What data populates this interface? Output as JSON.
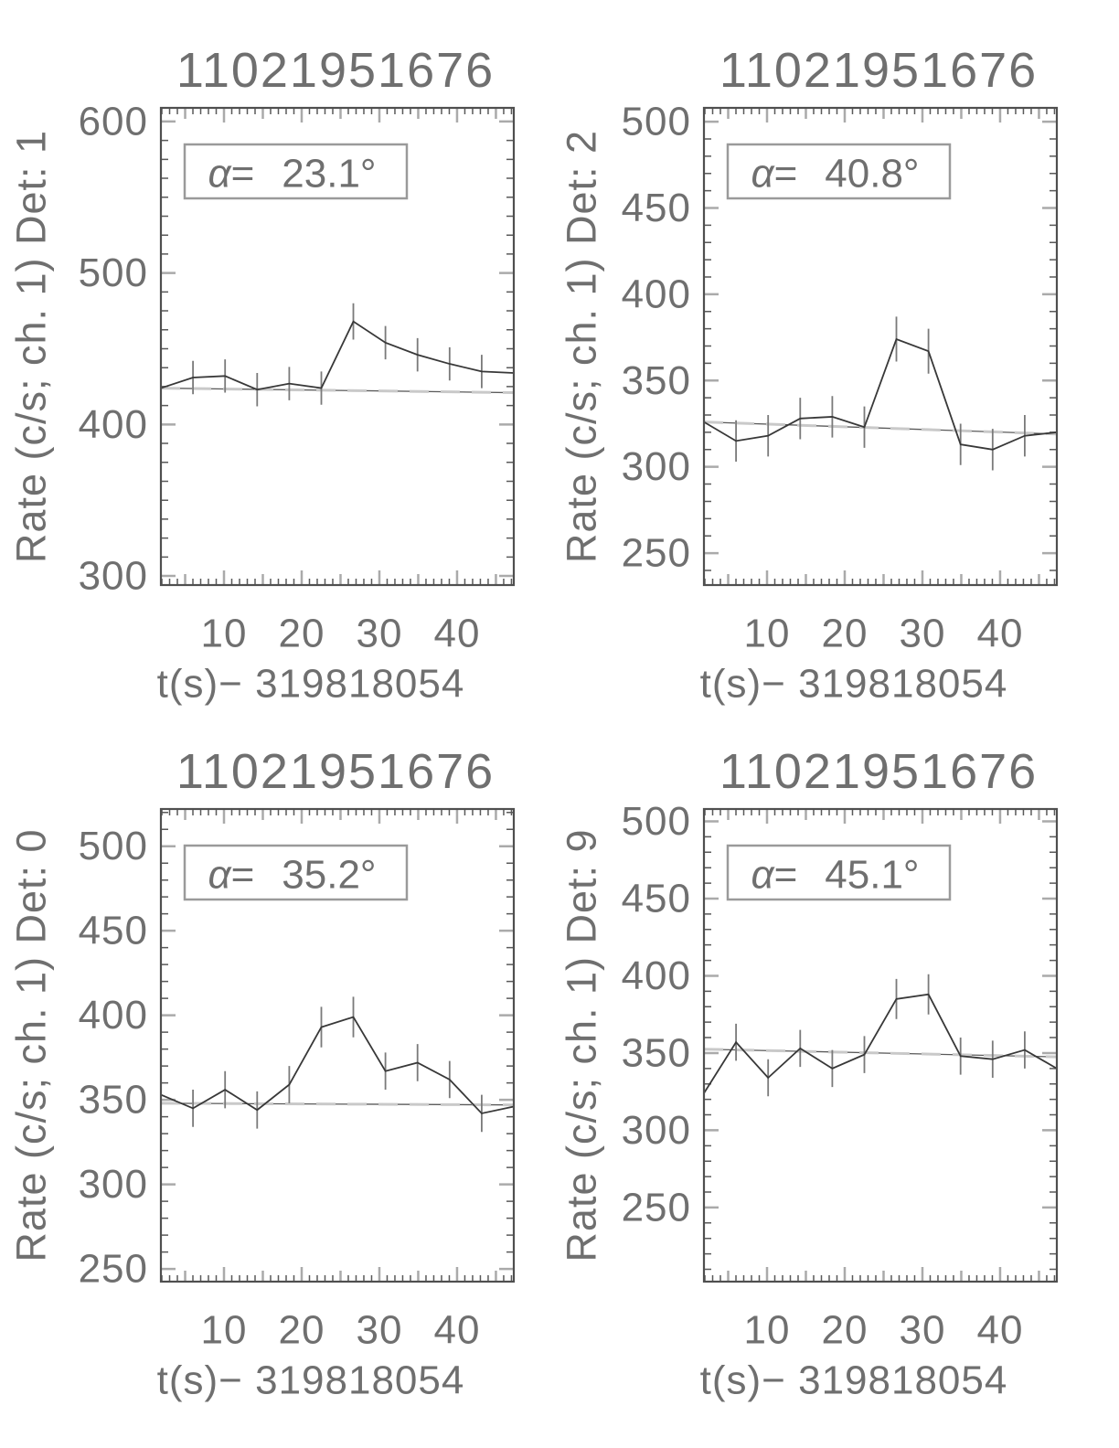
{
  "page": {
    "title": "11021951676",
    "background_color": "#ffffff"
  },
  "style": {
    "frame_color": "#4f4f4f",
    "minor_tick_color": "#5a5a5a",
    "major_tick_color": "#aaaaaa",
    "text_color": "#6f6f6f",
    "data_line_color": "#383838",
    "error_bar_color": "#7a7a7a",
    "background_fit_solid_color": "#5a5a5a",
    "background_fit_dash_color": "#c9c9c9",
    "annotation_box_border_color": "#9a9a9a"
  },
  "chart_data": [
    {
      "type": "line",
      "title": "11021951676",
      "ylabel": "Rate (c/s; ch. 1) Det: 1",
      "xlabel": "t(s)− 319818054",
      "detector": "Det: 1",
      "alpha_deg": "23.1",
      "alpha_label": "α=  23.1°",
      "xlim": [
        1.88,
        47.3
      ],
      "ylim": [
        294,
        609
      ],
      "x_major_ticks": [
        10,
        20,
        30,
        40
      ],
      "x_medium_ticks": [
        5,
        15,
        25,
        35,
        45
      ],
      "x_minor_step": 1,
      "y_major_ticks": [
        300,
        400,
        500,
        600
      ],
      "y_minor_step": 12.5,
      "grid": false,
      "legend_position": "none",
      "x": [
        1.88,
        6.01,
        10.14,
        14.27,
        18.4,
        22.53,
        26.65,
        30.78,
        34.91,
        39.04,
        43.17,
        47.3
      ],
      "rate": [
        424,
        431,
        432,
        423,
        427,
        424,
        468,
        454,
        446,
        440,
        435,
        434
      ],
      "rate_err": [
        0,
        11,
        11,
        11,
        11,
        11,
        12,
        11,
        11,
        11,
        11,
        0
      ],
      "background_fit": [
        424,
        421
      ]
    },
    {
      "type": "line",
      "title": "11021951676",
      "ylabel": "Rate (c/s; ch. 1) Det: 2",
      "xlabel": "t(s)− 319818054",
      "detector": "Det: 2",
      "alpha_deg": "40.8",
      "alpha_label": "α=  40.8°",
      "xlim": [
        1.88,
        47.3
      ],
      "ylim": [
        231.5,
        508
      ],
      "x_major_ticks": [
        10,
        20,
        30,
        40
      ],
      "x_medium_ticks": [
        5,
        15,
        25,
        35,
        45
      ],
      "x_minor_step": 1,
      "y_major_ticks": [
        250,
        300,
        350,
        400,
        450,
        500
      ],
      "y_minor_step": 10,
      "grid": false,
      "legend_position": "none",
      "x": [
        1.88,
        6.01,
        10.14,
        14.27,
        18.4,
        22.53,
        26.65,
        30.78,
        34.91,
        39.04,
        43.17,
        47.3
      ],
      "rate": [
        326,
        315,
        318,
        328,
        329,
        323,
        374,
        367,
        313,
        310,
        318,
        320
      ],
      "rate_err": [
        0,
        12,
        12,
        12,
        12,
        12,
        13,
        13,
        12,
        12,
        12,
        0
      ],
      "background_fit": [
        326,
        319
      ]
    },
    {
      "type": "line",
      "title": "11021951676",
      "ylabel": "Rate (c/s; ch. 1) Det: 0",
      "xlabel": "t(s)− 319818054",
      "detector": "Det: 0",
      "alpha_deg": "35.2",
      "alpha_label": "α=  35.2°",
      "xlim": [
        1.88,
        47.3
      ],
      "ylim": [
        242.5,
        522
      ],
      "x_major_ticks": [
        10,
        20,
        30,
        40
      ],
      "x_medium_ticks": [
        5,
        15,
        25,
        35,
        45
      ],
      "x_minor_step": 1,
      "y_major_ticks": [
        250,
        300,
        350,
        400,
        450,
        500
      ],
      "y_minor_step": 10,
      "grid": false,
      "legend_position": "none",
      "x": [
        1.88,
        6.01,
        10.14,
        14.27,
        18.4,
        22.53,
        26.65,
        30.78,
        34.91,
        39.04,
        43.17,
        47.3
      ],
      "rate": [
        353,
        345,
        356,
        344,
        359,
        393,
        399,
        367,
        372,
        362,
        342,
        346
      ],
      "rate_err": [
        0,
        11,
        11,
        11,
        11,
        12,
        12,
        11,
        11,
        11,
        11,
        0
      ],
      "background_fit": [
        348,
        347
      ]
    },
    {
      "type": "line",
      "title": "11021951676",
      "ylabel": "Rate (c/s; ch. 1) Det: 9",
      "xlabel": "t(s)− 319818054",
      "detector": "Det: 9",
      "alpha_deg": "45.1",
      "alpha_label": "α=  45.1°",
      "xlim": [
        1.88,
        47.3
      ],
      "ylim": [
        202,
        508
      ],
      "x_major_ticks": [
        10,
        20,
        30,
        40
      ],
      "x_medium_ticks": [
        5,
        15,
        25,
        35,
        45
      ],
      "x_minor_step": 1,
      "y_major_ticks": [
        200,
        250,
        300,
        350,
        400,
        450,
        500
      ],
      "y_minor_step": 10,
      "grid": false,
      "legend_position": "none",
      "x": [
        1.88,
        6.01,
        10.14,
        14.27,
        18.4,
        22.53,
        26.65,
        30.78,
        34.91,
        39.04,
        43.17,
        47.3
      ],
      "rate": [
        324,
        357,
        334,
        353,
        340,
        349,
        385,
        388,
        348,
        346,
        352,
        340
      ],
      "rate_err": [
        0,
        12,
        12,
        12,
        12,
        12,
        13,
        13,
        12,
        12,
        12,
        0
      ],
      "background_fit": [
        352.5,
        347.5
      ]
    }
  ]
}
